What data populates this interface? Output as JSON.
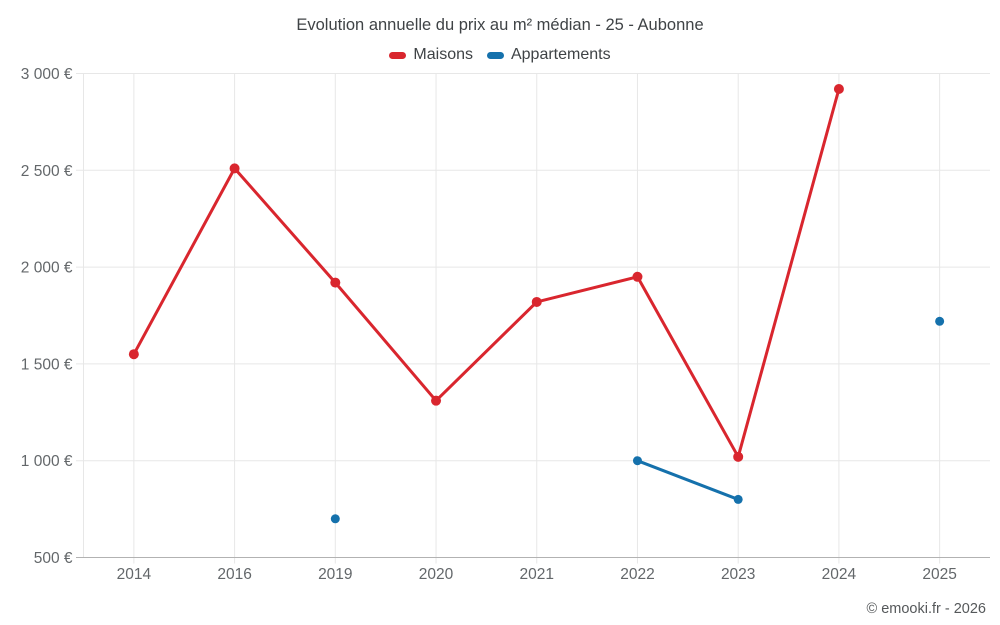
{
  "footer": "© emooki.fr - 2026",
  "colors": {
    "grid": "#e7e7e7",
    "axis_line": "#b2b2b2",
    "tick_text": "#63676a",
    "title_text": "#3f4346"
  },
  "chart_data": {
    "type": "line",
    "title": "Evolution annuelle du prix au m² médian - 25 - Aubonne",
    "categories": [
      "2014",
      "2016",
      "2019",
      "2020",
      "2021",
      "2022",
      "2023",
      "2024",
      "2025"
    ],
    "series": [
      {
        "name": "Maisons",
        "color": "#d9262e",
        "values": [
          1550,
          2510,
          1920,
          1310,
          1820,
          1950,
          1020,
          2920,
          null
        ]
      },
      {
        "name": "Appartements",
        "color": "#1571ac",
        "values": [
          null,
          null,
          700,
          null,
          null,
          1000,
          800,
          null,
          1720
        ]
      }
    ],
    "ylim": [
      500,
      3000
    ],
    "yticks": [
      {
        "v": 500,
        "label": "500 €"
      },
      {
        "v": 1000,
        "label": "1 000 €"
      },
      {
        "v": 1500,
        "label": "1 500 €"
      },
      {
        "v": 2000,
        "label": "2 000 €"
      },
      {
        "v": 2500,
        "label": "2 500 €"
      },
      {
        "v": 3000,
        "label": "3 000 €"
      }
    ],
    "legend_position": "top",
    "grid": true
  }
}
